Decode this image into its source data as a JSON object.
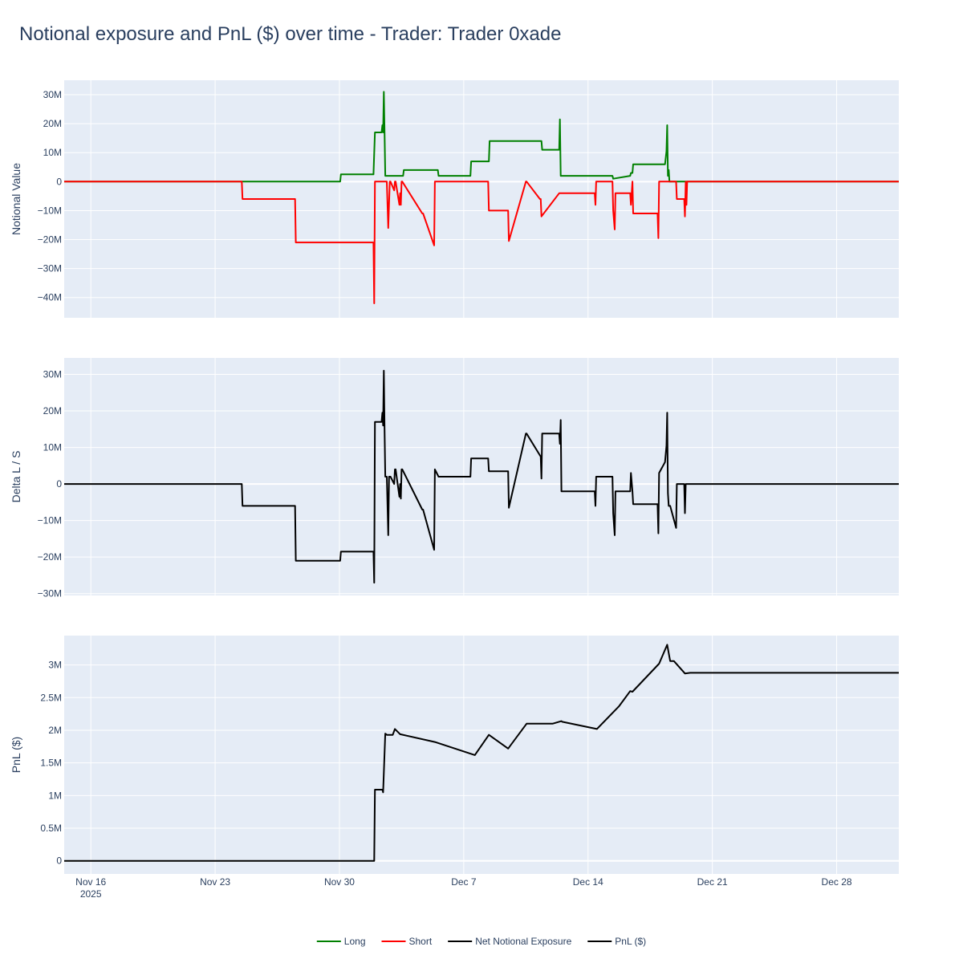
{
  "title": "Notional exposure and PnL ($) over time - Trader: Trader 0xade",
  "colors": {
    "plot_bg": "#e5ecf6",
    "grid": "#ffffff",
    "text": "#2a3f5f",
    "long": "#008000",
    "short": "#ff0000",
    "net": "#000000",
    "pnl": "#000000"
  },
  "legend": {
    "placement": "bottom-center"
  },
  "chart_data": [
    {
      "type": "line",
      "subplot": "top",
      "ylabel": "Notional Value",
      "xlim": [
        "2025-11-14T12:00",
        "2025-12-31T12:00"
      ],
      "ylim": [
        -47000000,
        35000000
      ],
      "yticks": [
        30000000,
        20000000,
        10000000,
        0,
        -10000000,
        -20000000,
        -30000000,
        -40000000
      ],
      "ytick_labels": [
        "30M",
        "20M",
        "10M",
        "0",
        "−10M",
        "−20M",
        "−30M",
        "−40M"
      ],
      "series": [
        {
          "name": "Long",
          "color": "#008000",
          "x": [
            "2025-11-14T12:00",
            "2025-11-30T01:00",
            "2025-11-30T02:00",
            "2025-12-01T22:00",
            "2025-12-02T00:00",
            "2025-12-02T09:00",
            "2025-12-02T10:00",
            "2025-12-02T11:00",
            "2025-12-02T12:00",
            "2025-12-02T13:00",
            "2025-12-02T14:00",
            "2025-12-03T14:00",
            "2025-12-03T15:00",
            "2025-12-05T13:00",
            "2025-12-05T14:00",
            "2025-12-07T09:00",
            "2025-12-07T10:00",
            "2025-12-08T10:00",
            "2025-12-08T11:00",
            "2025-12-11T09:00",
            "2025-12-11T10:00",
            "2025-12-12T09:00",
            "2025-12-12T10:00",
            "2025-12-12T11:00",
            "2025-12-12T12:00",
            "2025-12-15T09:00",
            "2025-12-15T10:00",
            "2025-12-16T09:00",
            "2025-12-16T10:00",
            "2025-12-16T12:00",
            "2025-12-16T13:00",
            "2025-12-18T08:00",
            "2025-12-18T10:00",
            "2025-12-18T11:00",
            "2025-12-18T12:00",
            "2025-12-18T13:00",
            "2025-12-18T14:00",
            "2025-12-18T15:00",
            "2025-12-31T12:00"
          ],
          "y": [
            0,
            0,
            2500000,
            2500000,
            17000000,
            17000000,
            19500000,
            17000000,
            31000000,
            17000000,
            2000000,
            2000000,
            4000000,
            4000000,
            2000000,
            2000000,
            7000000,
            7000000,
            14000000,
            14000000,
            11000000,
            11000000,
            21500000,
            2000000,
            2000000,
            2000000,
            1000000,
            2000000,
            3000000,
            3000000,
            6000000,
            6000000,
            10500000,
            19500000,
            2000000,
            4000000,
            0,
            0,
            0
          ]
        },
        {
          "name": "Short",
          "color": "#ff0000",
          "x": [
            "2025-11-14T12:00",
            "2025-11-24T12:00",
            "2025-11-24T13:00",
            "2025-11-27T12:00",
            "2025-11-27T13:00",
            "2025-12-01T22:00",
            "2025-12-01T23:00",
            "2025-12-02T00:00",
            "2025-12-02T16:00",
            "2025-12-02T17:00",
            "2025-12-02T18:00",
            "2025-12-02T20:00",
            "2025-12-02T21:00",
            "2025-12-03T02:00",
            "2025-12-03T03:00",
            "2025-12-03T04:00",
            "2025-12-03T09:00",
            "2025-12-03T10:00",
            "2025-12-03T11:00",
            "2025-12-03T12:00",
            "2025-12-03T13:00",
            "2025-12-04T16:00",
            "2025-12-04T17:00",
            "2025-12-05T08:00",
            "2025-12-05T09:00",
            "2025-12-08T09:00",
            "2025-12-08T10:00",
            "2025-12-09T12:00",
            "2025-12-09T13:00",
            "2025-12-10T12:00",
            "2025-12-10T13:00",
            "2025-12-11T07:00",
            "2025-12-11T08:00",
            "2025-12-11T09:00",
            "2025-12-12T09:00",
            "2025-12-12T10:00",
            "2025-12-14T09:00",
            "2025-12-14T10:00",
            "2025-12-14T11:00",
            "2025-12-15T09:00",
            "2025-12-15T10:00",
            "2025-12-15T12:00",
            "2025-12-15T13:00",
            "2025-12-16T09:00",
            "2025-12-16T10:00",
            "2025-12-16T12:00",
            "2025-12-16T13:00",
            "2025-12-17T22:00",
            "2025-12-17T23:00",
            "2025-12-18T00:00",
            "2025-12-18T23:00",
            "2025-12-19T00:00",
            "2025-12-19T10:00",
            "2025-12-19T11:00",
            "2025-12-19T12:00",
            "2025-12-19T13:00",
            "2025-12-19T14:00",
            "2025-12-31T12:00"
          ],
          "y": [
            0,
            0,
            -6000000,
            -6000000,
            -21000000,
            -21000000,
            -42000000,
            0,
            0,
            -8000000,
            -16000000,
            0,
            0,
            -3000000,
            0,
            0,
            -8000000,
            -4000000,
            -8000000,
            0,
            0,
            -11000000,
            -11000000,
            -22000000,
            0,
            0,
            -10000000,
            -10000000,
            -20500000,
            0,
            0,
            -6000000,
            -6000000,
            -12000000,
            -4000000,
            -4000000,
            -4000000,
            -8000000,
            0,
            0,
            -10000000,
            -16500000,
            -4000000,
            -4000000,
            -8000000,
            0,
            -11000000,
            -11000000,
            -19500000,
            0,
            0,
            -6000000,
            -6000000,
            -12000000,
            0,
            -8000000,
            0,
            0
          ]
        }
      ]
    },
    {
      "type": "line",
      "subplot": "middle",
      "ylabel": "Delta L / S",
      "xlim": [
        "2025-11-14T12:00",
        "2025-12-31T12:00"
      ],
      "ylim": [
        -30500000,
        34500000
      ],
      "yticks": [
        30000000,
        20000000,
        10000000,
        0,
        -10000000,
        -20000000,
        -30000000
      ],
      "ytick_labels": [
        "30M",
        "20M",
        "10M",
        "0",
        "−10M",
        "−20M",
        "−30M"
      ],
      "series": [
        {
          "name": "Net Notional Exposure",
          "color": "#000000",
          "x": [
            "2025-11-14T12:00",
            "2025-11-24T12:00",
            "2025-11-24T13:00",
            "2025-11-27T12:00",
            "2025-11-27T13:00",
            "2025-11-30T01:00",
            "2025-11-30T02:00",
            "2025-12-01T22:00",
            "2025-12-01T23:00",
            "2025-12-02T00:00",
            "2025-12-02T09:00",
            "2025-12-02T10:00",
            "2025-12-02T11:00",
            "2025-12-02T12:00",
            "2025-12-02T13:00",
            "2025-12-02T14:00",
            "2025-12-02T16:00",
            "2025-12-02T17:00",
            "2025-12-02T18:00",
            "2025-12-02T19:00",
            "2025-12-02T21:00",
            "2025-12-03T02:00",
            "2025-12-03T03:00",
            "2025-12-03T04:00",
            "2025-12-03T09:00",
            "2025-12-03T10:00",
            "2025-12-03T11:00",
            "2025-12-03T12:00",
            "2025-12-03T13:00",
            "2025-12-04T16:00",
            "2025-12-04T17:00",
            "2025-12-05T08:00",
            "2025-12-05T09:00",
            "2025-12-05T14:00",
            "2025-12-07T09:00",
            "2025-12-07T10:00",
            "2025-12-08T09:00",
            "2025-12-08T10:00",
            "2025-12-09T12:00",
            "2025-12-09T13:00",
            "2025-12-10T12:00",
            "2025-12-10T13:00",
            "2025-12-11T08:00",
            "2025-12-11T09:00",
            "2025-12-11T10:00",
            "2025-12-12T09:00",
            "2025-12-12T10:00",
            "2025-12-12T11:00",
            "2025-12-12T12:00",
            "2025-12-14T09:00",
            "2025-12-14T10:00",
            "2025-12-14T11:00",
            "2025-12-15T09:00",
            "2025-12-15T10:00",
            "2025-12-15T12:00",
            "2025-12-15T13:00",
            "2025-12-16T09:00",
            "2025-12-16T10:00",
            "2025-12-16T12:00",
            "2025-12-16T13:00",
            "2025-12-17T22:00",
            "2025-12-17T23:00",
            "2025-12-18T00:00",
            "2025-12-18T08:00",
            "2025-12-18T10:00",
            "2025-12-18T11:00",
            "2025-12-18T12:00",
            "2025-12-18T13:00",
            "2025-12-18T15:00",
            "2025-12-18T23:00",
            "2025-12-19T00:00",
            "2025-12-19T10:00",
            "2025-12-19T11:00",
            "2025-12-19T12:00",
            "2025-12-19T13:00",
            "2025-12-19T14:00",
            "2025-12-31T12:00"
          ],
          "y": [
            0,
            0,
            -6000000,
            -6000000,
            -21000000,
            -21000000,
            -18500000,
            -18500000,
            -27000000,
            17000000,
            17000000,
            19500000,
            16000000,
            31000000,
            15000000,
            2000000,
            2000000,
            -6000000,
            -14000000,
            2000000,
            2000000,
            0,
            4000000,
            4000000,
            -3500000,
            0,
            -4000000,
            4000000,
            4000000,
            -7000000,
            -7000000,
            -18000000,
            4000000,
            2000000,
            2000000,
            7000000,
            7000000,
            3500000,
            3500000,
            -6500000,
            13800000,
            13800000,
            7500000,
            1500000,
            13800000,
            13800000,
            11000000,
            17500000,
            -2000000,
            -2000000,
            -6000000,
            2000000,
            2000000,
            -8000000,
            -14000000,
            -2000000,
            -2000000,
            3000000,
            -2000000,
            -5500000,
            -5500000,
            -13500000,
            3000000,
            6000000,
            10500000,
            19500000,
            -2500000,
            -6000000,
            -6000000,
            -12000000,
            0,
            0,
            -8000000,
            0,
            0,
            0,
            0
          ]
        }
      ]
    },
    {
      "type": "line",
      "subplot": "bottom",
      "ylabel": "PnL ($)",
      "xlim": [
        "2025-11-14T12:00",
        "2025-12-31T12:00"
      ],
      "ylim": [
        -200000,
        3450000
      ],
      "yticks": [
        3000000,
        2500000,
        2000000,
        1500000,
        1000000,
        500000,
        0
      ],
      "ytick_labels": [
        "3M",
        "2.5M",
        "2M",
        "1.5M",
        "1M",
        "0.5M",
        "0"
      ],
      "xticks": [
        "2025-11-16",
        "2025-11-23",
        "2025-11-30",
        "2025-12-07",
        "2025-12-14",
        "2025-12-21",
        "2025-12-28"
      ],
      "xtick_labels": [
        "Nov 16",
        "Nov 23",
        "Nov 30",
        "Dec 7",
        "Dec 14",
        "Dec 21",
        "Dec 28"
      ],
      "xtick_year": "2025",
      "series": [
        {
          "name": "PnL ($)",
          "color": "#000000",
          "x": [
            "2025-11-14T12:00",
            "2025-12-01T23:00",
            "2025-12-02T00:00",
            "2025-12-02T10:00",
            "2025-12-02T11:00",
            "2025-12-02T14:00",
            "2025-12-02T16:00",
            "2025-12-03T00:00",
            "2025-12-03T03:00",
            "2025-12-03T10:00",
            "2025-12-05T09:00",
            "2025-12-07T15:00",
            "2025-12-08T10:00",
            "2025-12-09T12:00",
            "2025-12-10T13:00",
            "2025-12-12T00:00",
            "2025-12-12T12:00",
            "2025-12-12T13:00",
            "2025-12-14T12:00",
            "2025-12-15T18:00",
            "2025-12-16T09:00",
            "2025-12-16T12:00",
            "2025-12-18T00:00",
            "2025-12-18T11:00",
            "2025-12-18T15:00",
            "2025-12-18T20:00",
            "2025-12-19T11:00",
            "2025-12-19T18:00",
            "2025-12-31T12:00"
          ],
          "y": [
            0,
            0,
            1090000,
            1090000,
            1050000,
            1950000,
            1930000,
            1930000,
            2020000,
            1940000,
            1820000,
            1620000,
            1930000,
            1720000,
            2100000,
            2100000,
            2140000,
            2130000,
            2020000,
            2370000,
            2600000,
            2590000,
            3020000,
            3310000,
            3060000,
            3060000,
            2870000,
            2880000,
            2880000
          ]
        }
      ]
    }
  ]
}
